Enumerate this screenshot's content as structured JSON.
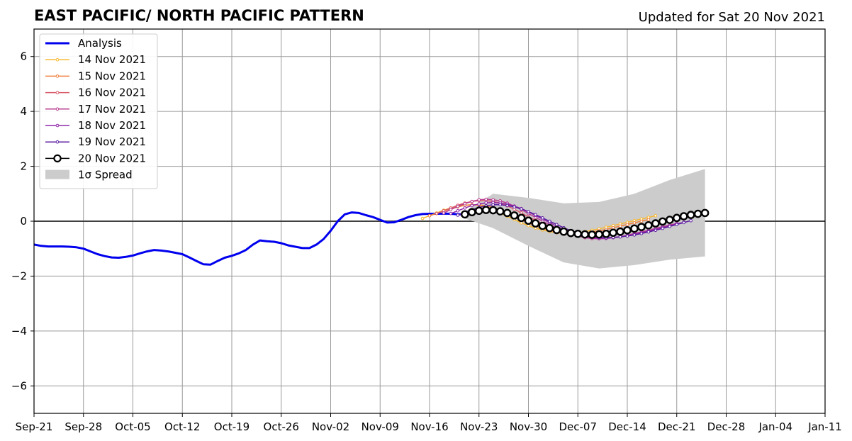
{
  "chart_data": {
    "type": "line",
    "title": "EAST PACIFIC/ NORTH PACIFIC PATTERN",
    "subtitle": "Updated for Sat 20 Nov 2021",
    "xlabel": "",
    "ylabel": "",
    "xlim": [
      "2021-09-21",
      "2022-01-11"
    ],
    "ylim": [
      -7,
      7
    ],
    "x_ticks": [
      "Sep-21",
      "Sep-28",
      "Oct-05",
      "Oct-12",
      "Oct-19",
      "Oct-26",
      "Nov-02",
      "Nov-09",
      "Nov-16",
      "Nov-23",
      "Nov-30",
      "Dec-07",
      "Dec-14",
      "Dec-21",
      "Dec-28",
      "Jan-04",
      "Jan-11"
    ],
    "y_ticks": [
      "6",
      "4",
      "2",
      "0",
      "−2",
      "−4",
      "−6"
    ],
    "y_tick_values": [
      6,
      4,
      2,
      0,
      -2,
      -4,
      -6
    ],
    "grid": true,
    "legend_position": "top-left",
    "zero_line": 0,
    "analysis": {
      "name": "Analysis",
      "color": "#0000ee",
      "start_date": "2021-09-21",
      "values": [
        -0.85,
        -0.9,
        -0.92,
        -0.92,
        -0.92,
        -0.93,
        -0.95,
        -1.0,
        -1.1,
        -1.2,
        -1.27,
        -1.32,
        -1.33,
        -1.3,
        -1.25,
        -1.17,
        -1.1,
        -1.05,
        -1.07,
        -1.1,
        -1.15,
        -1.2,
        -1.32,
        -1.45,
        -1.57,
        -1.58,
        -1.45,
        -1.33,
        -1.26,
        -1.17,
        -1.05,
        -0.85,
        -0.7,
        -0.73,
        -0.75,
        -0.8,
        -0.88,
        -0.93,
        -0.98,
        -0.98,
        -0.85,
        -0.65,
        -0.35,
        0.0,
        0.25,
        0.32,
        0.3,
        0.22,
        0.15,
        0.05,
        -0.05,
        -0.04,
        0.05,
        0.15,
        0.22,
        0.26,
        0.27,
        0.27,
        0.28,
        0.27,
        0.25,
        0.25
      ]
    },
    "forecasts": [
      {
        "name": "14 Nov 2021",
        "color": "#f7b830",
        "start_date": "2021-11-15",
        "values": [
          0.1,
          0.2,
          0.3,
          0.4,
          0.48,
          0.55,
          0.58,
          0.6,
          0.58,
          0.52,
          0.42,
          0.3,
          0.18,
          0.06,
          -0.06,
          -0.16,
          -0.25,
          -0.32,
          -0.38,
          -0.42,
          -0.44,
          -0.44,
          -0.42,
          -0.38,
          -0.33,
          -0.28,
          -0.22,
          -0.16,
          -0.1,
          -0.04,
          0.02,
          0.08,
          0.14,
          0.2
        ]
      },
      {
        "name": "15 Nov 2021",
        "color": "#f08040",
        "start_date": "2021-11-16",
        "values": [
          0.2,
          0.28,
          0.37,
          0.45,
          0.52,
          0.58,
          0.6,
          0.6,
          0.56,
          0.5,
          0.4,
          0.28,
          0.16,
          0.04,
          -0.07,
          -0.17,
          -0.26,
          -0.34,
          -0.4,
          -0.44,
          -0.46,
          -0.46,
          -0.44,
          -0.4,
          -0.35,
          -0.3,
          -0.24,
          -0.18,
          -0.12,
          -0.06,
          0.0,
          0.06
        ]
      },
      {
        "name": "16 Nov 2021",
        "color": "#d85868",
        "start_date": "2021-11-17",
        "values": [
          0.28,
          0.38,
          0.48,
          0.58,
          0.66,
          0.72,
          0.75,
          0.75,
          0.72,
          0.66,
          0.56,
          0.44,
          0.3,
          0.16,
          0.03,
          -0.09,
          -0.2,
          -0.3,
          -0.38,
          -0.44,
          -0.48,
          -0.5,
          -0.5,
          -0.48,
          -0.45,
          -0.4,
          -0.35,
          -0.29,
          -0.23,
          -0.17,
          -0.11,
          -0.05
        ]
      },
      {
        "name": "17 Nov 2021",
        "color": "#b83c90",
        "start_date": "2021-11-18",
        "values": [
          0.3,
          0.42,
          0.54,
          0.64,
          0.72,
          0.78,
          0.8,
          0.78,
          0.74,
          0.66,
          0.55,
          0.42,
          0.28,
          0.14,
          0.0,
          -0.13,
          -0.25,
          -0.36,
          -0.46,
          -0.54,
          -0.6,
          -0.63,
          -0.64,
          -0.63,
          -0.6,
          -0.56,
          -0.51,
          -0.45,
          -0.39,
          -0.33,
          -0.26,
          -0.2,
          -0.14,
          -0.08
        ]
      },
      {
        "name": "18 Nov 2021",
        "color": "#9028a8",
        "start_date": "2021-11-19",
        "values": [
          0.28,
          0.38,
          0.48,
          0.57,
          0.63,
          0.67,
          0.68,
          0.66,
          0.62,
          0.55,
          0.46,
          0.34,
          0.21,
          0.08,
          -0.05,
          -0.18,
          -0.3,
          -0.4,
          -0.49,
          -0.56,
          -0.6,
          -0.62,
          -0.62,
          -0.6,
          -0.57,
          -0.53,
          -0.48,
          -0.42,
          -0.36,
          -0.3,
          -0.23,
          -0.17,
          -0.1,
          -0.04
        ]
      },
      {
        "name": "19 Nov 2021",
        "color": "#5a1ca0",
        "start_date": "2021-11-20",
        "values": [
          0.22,
          0.32,
          0.42,
          0.5,
          0.56,
          0.6,
          0.6,
          0.57,
          0.52,
          0.45,
          0.35,
          0.24,
          0.12,
          0.0,
          -0.12,
          -0.24,
          -0.34,
          -0.43,
          -0.5,
          -0.56,
          -0.59,
          -0.6,
          -0.59,
          -0.57,
          -0.54,
          -0.5,
          -0.45,
          -0.39,
          -0.33,
          -0.26,
          -0.19,
          -0.12,
          -0.05,
          0.02
        ]
      },
      {
        "name": "20 Nov 2021",
        "color": "#000000",
        "marker_face": "#ffffff",
        "start_date": "2021-11-21",
        "values": [
          0.25,
          0.33,
          0.38,
          0.41,
          0.4,
          0.36,
          0.3,
          0.21,
          0.12,
          0.02,
          -0.08,
          -0.17,
          -0.25,
          -0.32,
          -0.38,
          -0.43,
          -0.46,
          -0.48,
          -0.49,
          -0.48,
          -0.46,
          -0.42,
          -0.38,
          -0.33,
          -0.27,
          -0.21,
          -0.15,
          -0.08,
          -0.01,
          0.05,
          0.12,
          0.18,
          0.23,
          0.27,
          0.3
        ]
      }
    ],
    "spread": {
      "name": "1σ Spread",
      "color": "#cccccc",
      "dates": [
        "2021-11-21",
        "2021-11-25",
        "2021-11-30",
        "2021-12-05",
        "2021-12-10",
        "2021-12-15",
        "2021-12-20",
        "2021-12-25"
      ],
      "upper": [
        0.35,
        1.0,
        0.85,
        0.65,
        0.7,
        1.0,
        1.5,
        1.9
      ],
      "lower": [
        0.1,
        -0.25,
        -0.9,
        -1.5,
        -1.72,
        -1.6,
        -1.4,
        -1.28
      ]
    }
  }
}
